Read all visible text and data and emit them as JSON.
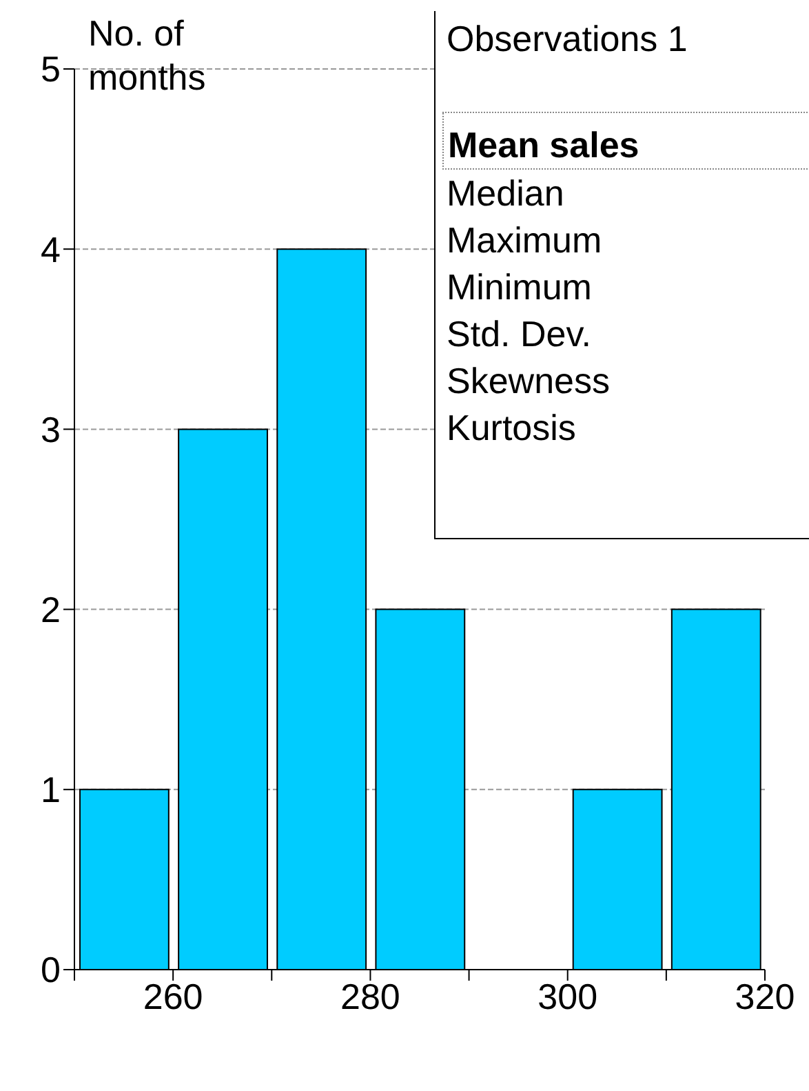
{
  "chart_data": {
    "type": "histogram",
    "ylabel": "No. of months",
    "bins": [
      250,
      260,
      270,
      280,
      290,
      300,
      310,
      320
    ],
    "values": [
      1,
      3,
      4,
      2,
      0,
      1,
      2
    ],
    "color": "#00ccff",
    "xlim": [
      250,
      320
    ],
    "xticks": [
      {
        "value": 250,
        "label": null
      },
      260,
      {
        "value": 270,
        "label": null
      },
      280,
      {
        "value": 290,
        "label": null
      },
      300,
      {
        "value": 310,
        "label": null
      },
      320
    ],
    "ylim": [
      0,
      5
    ],
    "yticks": [
      0,
      1,
      2,
      3,
      4,
      5
    ],
    "grid": "y",
    "annotations": [
      "Observations 1",
      "Mean sales",
      "Median",
      "Maximum",
      "Minimum",
      "Std. Dev.",
      "Skewness",
      "Kurtosis"
    ]
  }
}
